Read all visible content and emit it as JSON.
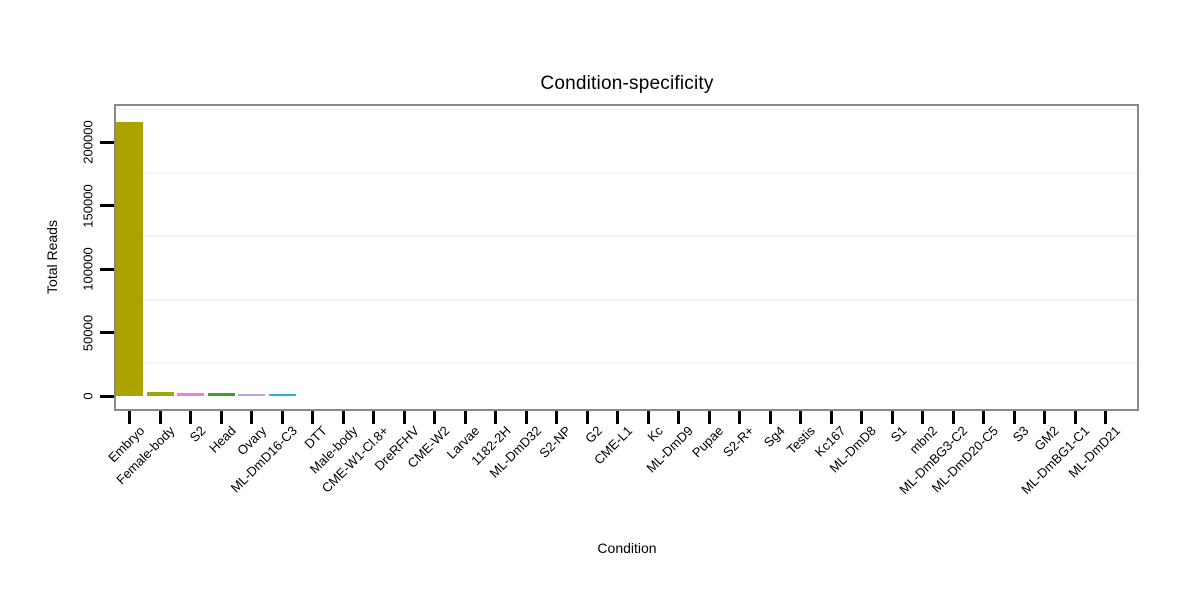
{
  "chart_data": {
    "type": "bar",
    "title": "Condition-specificity",
    "xlabel": "Condition",
    "ylabel": "Total Reads",
    "categories": [
      "Embryo",
      "Female-body",
      "S2",
      "Head",
      "Ovary",
      "ML-DmD16-C3",
      "DTT",
      "Male-body",
      "CME-W1-Cl.8+",
      "DreRFHV",
      "CME-W2",
      "Larvae",
      "1182-2H",
      "ML-DmD32",
      "S2-NP",
      "G2",
      "CME-L1",
      "Kc",
      "ML-DmD9",
      "Pupae",
      "S2-R+",
      "Sg4",
      "Testis",
      "Kc167",
      "ML-DmD8",
      "S1",
      "mbn2",
      "ML-DmBG3-C2",
      "ML-DmD20-C5",
      "S3",
      "GM2",
      "ML-DmBG1-C1",
      "ML-DmD21"
    ],
    "values": [
      216000,
      3100,
      2600,
      2100,
      1900,
      1800,
      0,
      0,
      0,
      0,
      0,
      0,
      0,
      0,
      0,
      0,
      0,
      0,
      0,
      0,
      0,
      0,
      0,
      0,
      0,
      0,
      0,
      0,
      0,
      0,
      0,
      0,
      0
    ],
    "bar_colors": [
      "#ABA300",
      "#9FA800",
      "#EC7EDE",
      "#3AA41C",
      "#BCA2E2",
      "#29B6D4",
      null,
      null,
      null,
      null,
      null,
      null,
      null,
      null,
      null,
      null,
      null,
      null,
      null,
      null,
      null,
      null,
      null,
      null,
      null,
      null,
      null,
      null,
      null,
      null,
      null,
      null,
      null
    ],
    "ylim": [
      0,
      229000
    ],
    "yticks": [
      0,
      50000,
      100000,
      150000,
      200000
    ],
    "ytick_labels": [
      "0",
      "50000",
      "100000",
      "150000",
      "200000"
    ],
    "minor_gridlines": [
      25000,
      75000,
      125000,
      175000,
      225000
    ],
    "grid": "horizontal minor gridlines only, very faint",
    "legend_position": "none",
    "colors": {
      "panel_border": "#898989",
      "tick": "#000000",
      "minor_grid": "#f5f5f5",
      "text": "#000000"
    }
  }
}
